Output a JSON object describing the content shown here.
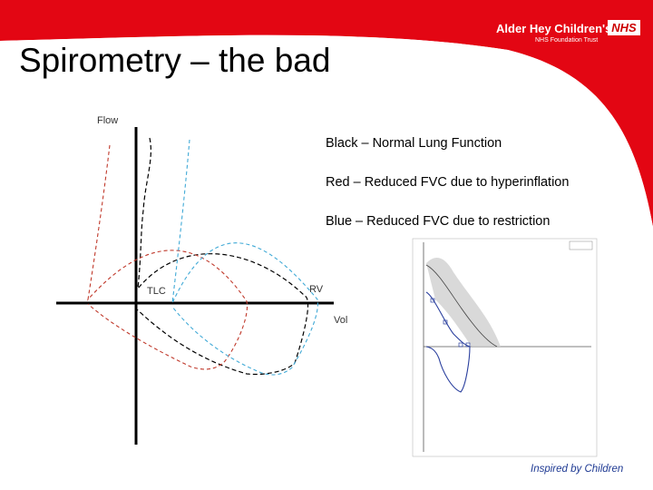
{
  "slide": {
    "title": "Spirometry – the bad",
    "legend": {
      "black": "Black – Normal Lung Function",
      "red": "Red – Reduced FVC due to hyperinflation",
      "blue": "Blue – Reduced FVC due to restriction"
    },
    "footer": "Inspired by Children"
  },
  "branding": {
    "name": "Alder Hey Children's",
    "badge": "NHS",
    "trust": "NHS Foundation Trust",
    "color": "#e30613"
  },
  "diagram": {
    "y_label": "Flow",
    "x_label": "Vol",
    "tlc_label": "TLC",
    "rv_label": "RV",
    "colors": {
      "normal": "#000000",
      "hyperinflation": "#c0392b",
      "restriction": "#3fa9d6"
    }
  }
}
